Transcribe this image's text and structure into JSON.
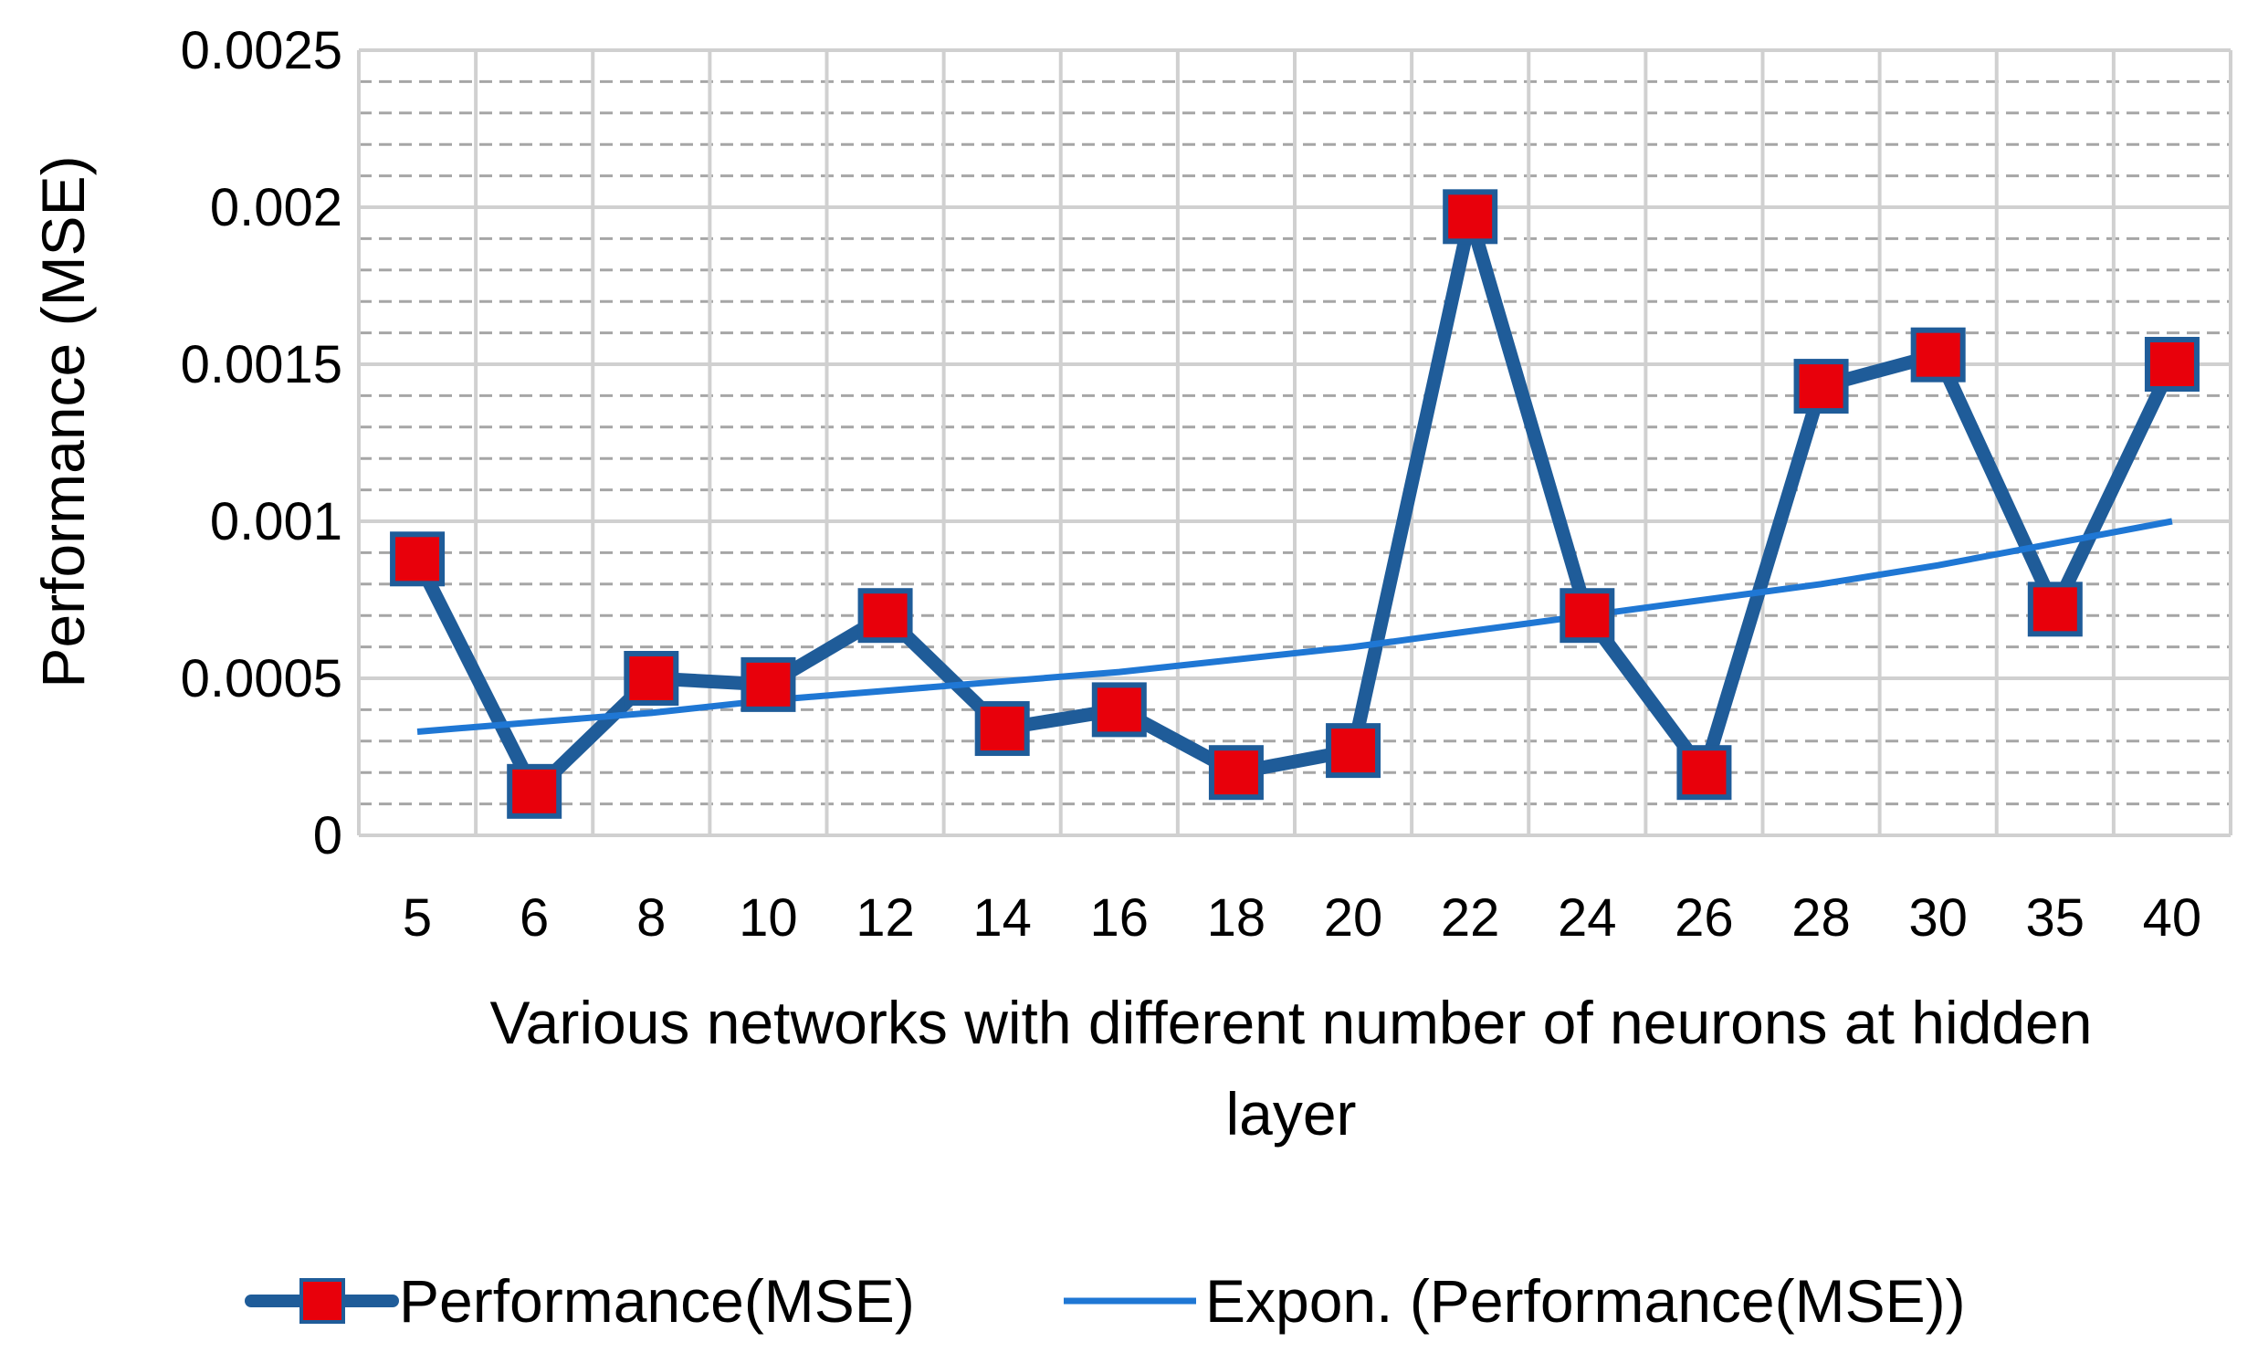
{
  "chart_data": {
    "type": "line",
    "title": "",
    "xlabel": [
      "Various networks with different number of neurons at hidden",
      "layer"
    ],
    "ylabel": "Performance (MSE)",
    "categories": [
      "5",
      "6",
      "8",
      "10",
      "12",
      "14",
      "16",
      "18",
      "20",
      "22",
      "24",
      "26",
      "28",
      "30",
      "35",
      "40"
    ],
    "ylim": [
      0,
      0.0025
    ],
    "yticks": [
      0,
      0.0005,
      0.001,
      0.0015,
      0.002,
      0.0025
    ],
    "ytick_labels": [
      "0",
      "0.0005",
      "0.001",
      "0.0015",
      "0.002",
      "0.0025"
    ],
    "grid": true,
    "legend_position": "bottom",
    "series": [
      {
        "name": "Performance(MSE)",
        "color": "#1f5c99",
        "marker": "square",
        "marker_color": "#e8000b",
        "values": [
          0.00088,
          0.00014,
          0.0005,
          0.00048,
          0.0007,
          0.00034,
          0.0004,
          0.0002,
          0.00027,
          0.00197,
          0.0007,
          0.0002,
          0.00143,
          0.00153,
          0.00072,
          0.0015
        ]
      },
      {
        "name": "Expon. (Performance(MSE))",
        "color": "#1f77d4",
        "type": "trendline-exponential",
        "values": [
          0.00033,
          0.00036,
          0.00039,
          0.00043,
          0.00046,
          0.00049,
          0.00052,
          0.00056,
          0.0006,
          0.00065,
          0.0007,
          0.00075,
          0.0008,
          0.00086,
          0.00093,
          0.001
        ]
      }
    ]
  }
}
